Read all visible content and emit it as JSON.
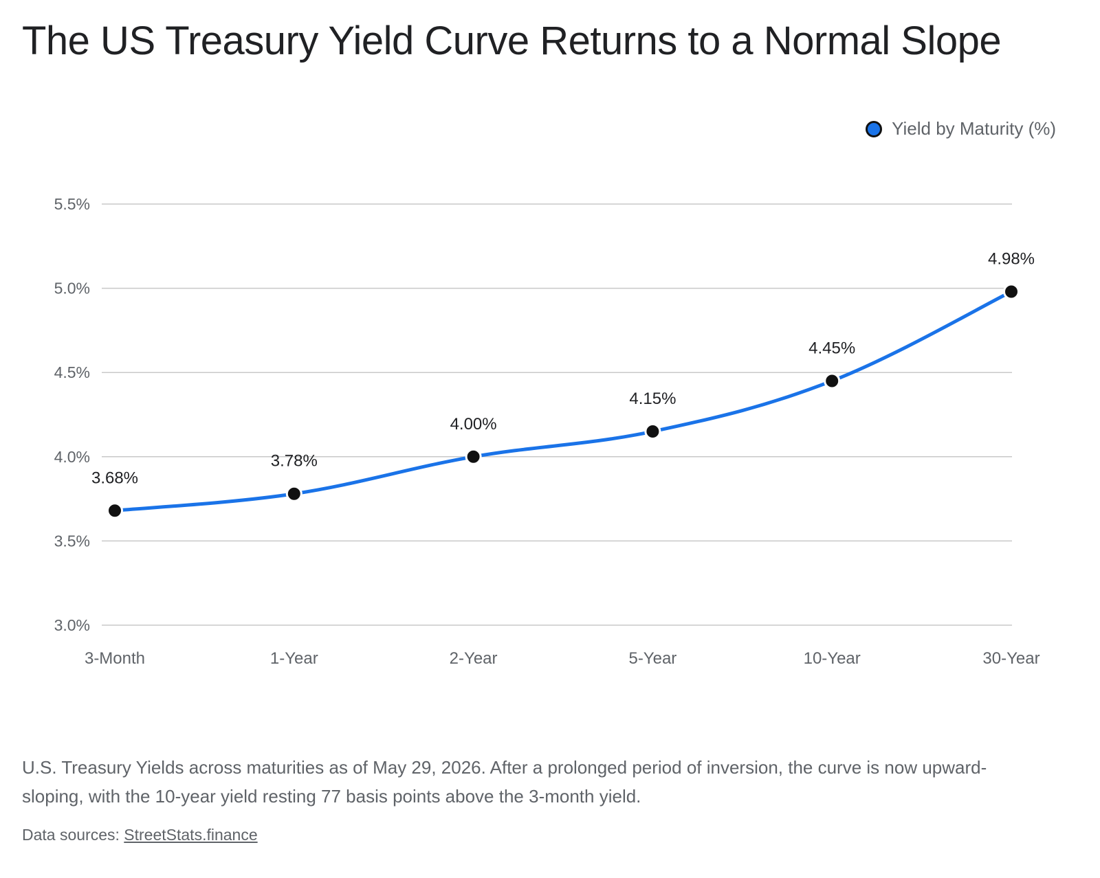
{
  "title": "The US Treasury Yield Curve Returns to a Normal Slope",
  "caption": "U.S. Treasury Yields across maturities as of May 29, 2026. After a prolonged period of inversion, the curve is now upward-sloping, with the 10-year yield resting 77 basis points above the 3-month yield.",
  "sources": {
    "prefix": "Data sources: ",
    "link_text": "StreetStats.finance"
  },
  "colors": {
    "line": "#1a73e8",
    "marker": "#111111",
    "grid": "#c8c8c8",
    "axis_text": "#5f6368"
  },
  "chart_data": {
    "type": "line",
    "title": "The US Treasury Yield Curve Returns to a Normal Slope",
    "categories": [
      "3-Month",
      "1-Year",
      "2-Year",
      "5-Year",
      "10-Year",
      "30-Year"
    ],
    "series": [
      {
        "name": "Yield by Maturity (%)",
        "values": [
          3.68,
          3.78,
          4.0,
          4.15,
          4.45,
          4.98
        ],
        "labels": [
          "3.68%",
          "3.78%",
          "4.00%",
          "4.15%",
          "4.45%",
          "4.98%"
        ]
      }
    ],
    "yticks": [
      3.0,
      3.5,
      4.0,
      4.5,
      5.0,
      5.5
    ],
    "ytick_labels": [
      "3.0%",
      "3.5%",
      "4.0%",
      "4.5%",
      "5.0%",
      "5.5%"
    ],
    "ylim": [
      3.0,
      5.5
    ],
    "xlabel": "",
    "ylabel": "",
    "grid": "horizontal",
    "legend": "top-right",
    "smooth": true
  }
}
